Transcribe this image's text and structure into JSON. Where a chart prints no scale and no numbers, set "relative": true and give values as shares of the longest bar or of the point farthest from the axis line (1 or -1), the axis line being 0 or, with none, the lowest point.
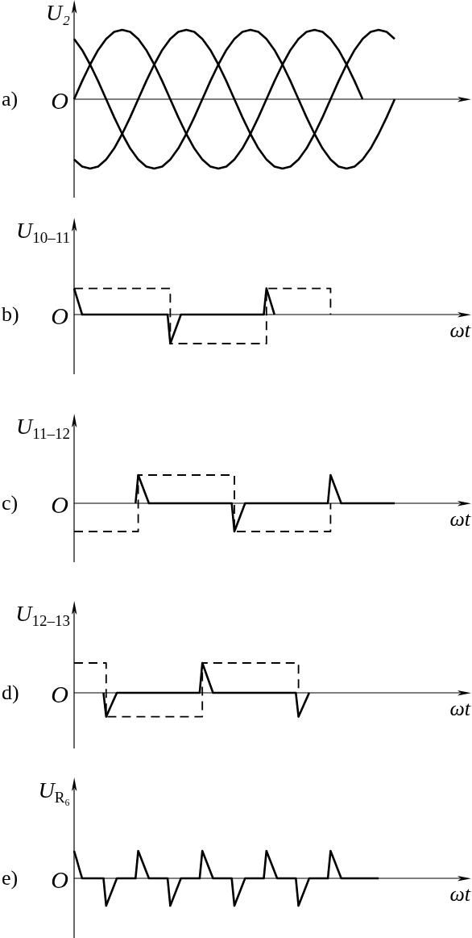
{
  "chart_data": [
    {
      "type": "line",
      "title": "a)",
      "ylabel": "U₂",
      "annotations": [
        "O"
      ],
      "relative": true,
      "tick_labels": false,
      "categories": [
        null,
        null,
        null,
        null,
        null,
        null,
        null,
        null,
        null,
        null,
        null,
        null,
        null,
        null,
        null,
        null,
        null,
        null,
        null,
        null,
        null,
        null,
        null,
        null,
        null,
        null,
        null,
        null,
        null,
        null,
        null,
        null,
        null,
        null,
        null,
        null,
        null,
        null,
        null,
        null,
        null
      ],
      "series": [
        {
          "color": "#000000",
          "values": [
            0,
            0.26,
            0.5,
            0.71,
            0.87,
            0.97,
            1,
            0.97,
            0.87,
            0.71,
            0.5,
            0.26,
            0,
            -0.26,
            -0.5,
            -0.71,
            -0.87,
            -0.97,
            -1,
            -0.97,
            -0.87,
            -0.71,
            -0.5,
            -0.26,
            0,
            0.26,
            0.5,
            0.71,
            0.87,
            0.97,
            1,
            0.97,
            0.87,
            0.71,
            0.5,
            0.26,
            0,
            null,
            null,
            null,
            null
          ]
        },
        {
          "color": "#000000",
          "values": [
            0.87,
            0.71,
            0.5,
            0.26,
            0,
            -0.26,
            -0.5,
            -0.71,
            -0.87,
            -0.97,
            -1,
            -0.97,
            -0.87,
            -0.71,
            -0.5,
            -0.26,
            0,
            0.26,
            0.5,
            0.71,
            0.87,
            0.97,
            1,
            0.97,
            0.87,
            0.71,
            0.5,
            0.26,
            0,
            -0.26,
            -0.5,
            -0.71,
            -0.87,
            -0.97,
            -1,
            -0.97,
            -0.87,
            -0.71,
            -0.5,
            -0.26,
            0
          ]
        },
        {
          "color": "#000000",
          "values": [
            -0.87,
            -0.97,
            -1,
            -0.97,
            -0.87,
            -0.71,
            -0.5,
            -0.26,
            0,
            0.26,
            0.5,
            0.71,
            0.87,
            0.97,
            1,
            0.97,
            0.87,
            0.71,
            0.5,
            0.26,
            0,
            -0.26,
            -0.5,
            -0.71,
            -0.87,
            -0.97,
            -1,
            -0.97,
            -0.87,
            -0.71,
            -0.5,
            -0.26,
            0,
            0.26,
            0.5,
            0.71,
            0.87,
            0.97,
            1,
            0.97,
            0.87
          ]
        }
      ]
    },
    {
      "type": "line",
      "title": "b)",
      "ylabel": "U$_{10–11}$",
      "xlabel": "ωt",
      "annotations": [
        "O"
      ],
      "relative": true,
      "tick_labels": false,
      "categories": [
        null,
        null,
        null,
        null,
        null,
        null,
        null,
        null,
        null,
        null,
        null,
        null,
        null,
        null,
        null,
        null,
        null,
        null,
        null,
        null,
        null,
        null,
        null,
        null,
        null,
        null,
        null,
        null,
        null,
        null,
        null,
        null,
        null,
        null,
        null,
        null,
        null,
        null,
        null,
        null,
        null,
        null,
        null,
        null,
        null,
        null,
        null,
        null,
        null,
        null,
        null,
        null,
        null,
        null,
        null,
        null,
        null,
        null,
        null,
        null,
        null,
        null,
        null,
        null,
        null,
        null,
        null,
        null,
        null,
        null,
        null,
        null,
        null,
        null,
        null,
        null,
        null,
        null,
        null,
        null,
        null,
        null,
        null,
        null,
        null,
        null,
        null,
        null,
        null,
        null,
        null,
        null,
        null,
        null,
        null,
        null,
        null,
        null,
        null,
        null,
        null,
        null,
        null,
        null,
        null,
        null,
        null,
        null,
        null,
        null,
        null,
        null,
        null,
        null,
        null,
        null,
        null,
        null,
        null,
        null,
        null
      ],
      "series": [
        {
          "color": "#000000",
          "values": [
            0.9,
            0.6,
            0.3,
            0,
            0,
            0,
            0,
            0,
            0,
            0,
            0,
            0,
            0,
            0,
            0,
            0,
            0,
            0,
            0,
            0,
            0,
            0,
            0,
            0,
            0,
            0,
            0,
            0,
            0,
            0,
            0,
            0,
            0,
            0,
            0,
            0,
            -1,
            -0.75,
            -0.5,
            -0.25,
            0,
            0,
            0,
            0,
            0,
            0,
            0,
            0,
            0,
            0,
            0,
            0,
            0,
            0,
            0,
            0,
            0,
            0,
            0,
            0,
            0,
            0,
            0,
            0,
            0,
            0,
            0,
            0,
            0,
            0,
            0,
            0,
            0.9,
            0.6,
            0.3,
            0,
            null,
            null,
            null,
            null,
            null,
            null,
            null,
            null,
            null,
            null,
            null,
            null,
            null,
            null,
            null,
            null,
            null,
            null,
            null,
            null,
            null,
            null,
            null,
            null,
            null,
            null,
            null,
            null,
            null,
            null,
            null,
            null,
            null,
            null,
            null,
            null,
            null,
            null,
            null,
            null,
            null,
            null,
            null,
            null,
            null
          ]
        },
        {
          "type": "step",
          "line_style": "dashed",
          "color": "#000000",
          "values": [
            0.9,
            0.9,
            0.9,
            0.9,
            0.9,
            0.9,
            0.9,
            0.9,
            0.9,
            0.9,
            0.9,
            0.9,
            0.9,
            0.9,
            0.9,
            0.9,
            0.9,
            0.9,
            0.9,
            0.9,
            0.9,
            0.9,
            0.9,
            0.9,
            0.9,
            0.9,
            0.9,
            0.9,
            0.9,
            0.9,
            0.9,
            0.9,
            0.9,
            0.9,
            0.9,
            0.9,
            -1,
            -1,
            -1,
            -1,
            -1,
            -1,
            -1,
            -1,
            -1,
            -1,
            -1,
            -1,
            -1,
            -1,
            -1,
            -1,
            -1,
            -1,
            -1,
            -1,
            -1,
            -1,
            -1,
            -1,
            -1,
            -1,
            -1,
            -1,
            -1,
            -1,
            -1,
            -1,
            -1,
            -1,
            -1,
            -1,
            0.9,
            0.9,
            0.9,
            0.9,
            0.9,
            0.9,
            0.9,
            0.9,
            0.9,
            0.9,
            0.9,
            0.9,
            0.9,
            0.9,
            0.9,
            0.9,
            0.9,
            0.9,
            0.9,
            0.9,
            0.9,
            0.9,
            0.9,
            0.9,
            0,
            null,
            null,
            null,
            null,
            null,
            null,
            null,
            null,
            null,
            null,
            null,
            null,
            null,
            null,
            null,
            null,
            null,
            null,
            null,
            null,
            null,
            null,
            null,
            null
          ]
        }
      ]
    },
    {
      "type": "line",
      "title": "c)",
      "ylabel": "U$_{11–12}$",
      "xlabel": "ωt",
      "annotations": [
        "O"
      ],
      "relative": true,
      "tick_labels": false,
      "categories": [
        null,
        null,
        null,
        null,
        null,
        null,
        null,
        null,
        null,
        null,
        null,
        null,
        null,
        null,
        null,
        null,
        null,
        null,
        null,
        null,
        null,
        null,
        null,
        null,
        null,
        null,
        null,
        null,
        null,
        null,
        null,
        null,
        null,
        null,
        null,
        null,
        null,
        null,
        null,
        null,
        null,
        null,
        null,
        null,
        null,
        null,
        null,
        null,
        null,
        null,
        null,
        null,
        null,
        null,
        null,
        null,
        null,
        null,
        null,
        null,
        null,
        null,
        null,
        null,
        null,
        null,
        null,
        null,
        null,
        null,
        null,
        null,
        null,
        null,
        null,
        null,
        null,
        null,
        null,
        null,
        null,
        null,
        null,
        null,
        null,
        null,
        null,
        null,
        null,
        null,
        null,
        null,
        null,
        null,
        null,
        null,
        null,
        null,
        null,
        null,
        null,
        null,
        null,
        null,
        null,
        null,
        null,
        null,
        null,
        null,
        null,
        null,
        null,
        null,
        null,
        null,
        null,
        null,
        null,
        null,
        null
      ],
      "series": [
        {
          "color": "#000000",
          "values": [
            null,
            null,
            null,
            null,
            null,
            null,
            null,
            null,
            null,
            null,
            null,
            null,
            null,
            null,
            null,
            null,
            null,
            null,
            null,
            null,
            null,
            null,
            null,
            0,
            1,
            0.75,
            0.5,
            0.25,
            0,
            0,
            0,
            0,
            0,
            0,
            0,
            0,
            0,
            0,
            0,
            0,
            0,
            0,
            0,
            0,
            0,
            0,
            0,
            0,
            0,
            0,
            0,
            0,
            0,
            0,
            0,
            0,
            0,
            0,
            0,
            0,
            -1,
            -0.75,
            -0.5,
            -0.25,
            0,
            0,
            0,
            0,
            0,
            0,
            0,
            0,
            0,
            0,
            0,
            0,
            0,
            0,
            0,
            0,
            0,
            0,
            0,
            0,
            0,
            0,
            0,
            0,
            0,
            0,
            0,
            0,
            0,
            0,
            0,
            0,
            1,
            0.75,
            0.5,
            0.25,
            0,
            0,
            0,
            0,
            0,
            0,
            0,
            0,
            0,
            0,
            0,
            0,
            0,
            0,
            0,
            0,
            0,
            0,
            0,
            0,
            0
          ]
        },
        {
          "type": "step",
          "line_style": "dashed",
          "color": "#000000",
          "values": [
            -1,
            -1,
            -1,
            -1,
            -1,
            -1,
            -1,
            -1,
            -1,
            -1,
            -1,
            -1,
            -1,
            -1,
            -1,
            -1,
            -1,
            -1,
            -1,
            -1,
            -1,
            -1,
            -1,
            -1,
            1,
            1,
            1,
            1,
            1,
            1,
            1,
            1,
            1,
            1,
            1,
            1,
            1,
            1,
            1,
            1,
            1,
            1,
            1,
            1,
            1,
            1,
            1,
            1,
            1,
            1,
            1,
            1,
            1,
            1,
            1,
            1,
            1,
            1,
            1,
            1,
            -1,
            -1,
            -1,
            -1,
            -1,
            -1,
            -1,
            -1,
            -1,
            -1,
            -1,
            -1,
            -1,
            -1,
            -1,
            -1,
            -1,
            -1,
            -1,
            -1,
            -1,
            -1,
            -1,
            -1,
            -1,
            -1,
            -1,
            -1,
            -1,
            -1,
            -1,
            -1,
            -1,
            -1,
            -1,
            -1,
            0,
            null,
            null,
            null,
            null,
            null,
            null,
            null,
            null,
            null,
            null,
            null,
            null,
            null,
            null,
            null,
            null,
            null,
            null,
            null,
            null,
            null,
            null,
            null,
            null
          ]
        }
      ]
    },
    {
      "type": "line",
      "title": "d)",
      "ylabel": "U$_{12–13}$",
      "xlabel": "ωt",
      "annotations": [
        "O"
      ],
      "relative": true,
      "tick_labels": false,
      "categories": [
        null,
        null,
        null,
        null,
        null,
        null,
        null,
        null,
        null,
        null,
        null,
        null,
        null,
        null,
        null,
        null,
        null,
        null,
        null,
        null,
        null,
        null,
        null,
        null,
        null,
        null,
        null,
        null,
        null,
        null,
        null,
        null,
        null,
        null,
        null,
        null,
        null,
        null,
        null,
        null,
        null,
        null,
        null,
        null,
        null,
        null,
        null,
        null,
        null,
        null,
        null,
        null,
        null,
        null,
        null,
        null,
        null,
        null,
        null,
        null,
        null,
        null,
        null,
        null,
        null,
        null,
        null,
        null,
        null,
        null,
        null,
        null,
        null,
        null,
        null,
        null,
        null,
        null,
        null,
        null,
        null,
        null,
        null,
        null,
        null,
        null,
        null,
        null,
        null,
        null,
        null,
        null,
        null,
        null,
        null,
        null,
        null,
        null,
        null,
        null,
        null,
        null,
        null,
        null,
        null,
        null,
        null,
        null,
        null,
        null,
        null,
        null,
        null,
        null,
        null,
        null,
        null,
        null,
        null,
        null,
        null
      ],
      "series": [
        {
          "color": "#000000",
          "values": [
            null,
            null,
            null,
            null,
            null,
            null,
            null,
            null,
            null,
            null,
            null,
            0,
            -0.8,
            -0.6,
            -0.4,
            -0.2,
            0,
            0,
            0,
            0,
            0,
            0,
            0,
            0,
            0,
            0,
            0,
            0,
            0,
            0,
            0,
            0,
            0,
            0,
            0,
            0,
            0,
            0,
            0,
            0,
            0,
            0,
            0,
            0,
            0,
            0,
            0,
            0,
            1,
            0.75,
            0.5,
            0.25,
            0,
            0,
            0,
            0,
            0,
            0,
            0,
            0,
            0,
            0,
            0,
            0,
            0,
            0,
            0,
            0,
            0,
            0,
            0,
            0,
            0,
            0,
            0,
            0,
            0,
            0,
            0,
            0,
            0,
            0,
            0,
            0,
            -0.8,
            -0.6,
            -0.4,
            -0.2,
            0,
            null,
            null,
            null,
            null,
            null,
            null,
            null,
            null,
            null,
            null,
            null,
            null,
            null,
            null,
            null,
            null,
            null,
            null,
            null,
            null,
            null,
            null,
            null,
            null,
            null,
            null,
            null,
            null,
            null,
            null,
            null,
            null
          ]
        },
        {
          "type": "step",
          "line_style": "dashed",
          "color": "#000000",
          "values": [
            1,
            1,
            1,
            1,
            1,
            1,
            1,
            1,
            1,
            1,
            1,
            1,
            -0.8,
            -0.8,
            -0.8,
            -0.8,
            -0.8,
            -0.8,
            -0.8,
            -0.8,
            -0.8,
            -0.8,
            -0.8,
            -0.8,
            -0.8,
            -0.8,
            -0.8,
            -0.8,
            -0.8,
            -0.8,
            -0.8,
            -0.8,
            -0.8,
            -0.8,
            -0.8,
            -0.8,
            -0.8,
            -0.8,
            -0.8,
            -0.8,
            -0.8,
            -0.8,
            -0.8,
            -0.8,
            -0.8,
            -0.8,
            -0.8,
            -0.8,
            1,
            1,
            1,
            1,
            1,
            1,
            1,
            1,
            1,
            1,
            1,
            1,
            1,
            1,
            1,
            1,
            1,
            1,
            1,
            1,
            1,
            1,
            1,
            1,
            1,
            1,
            1,
            1,
            1,
            1,
            1,
            1,
            1,
            1,
            1,
            1,
            0,
            null,
            null,
            null,
            null,
            null,
            null,
            null,
            null,
            null,
            null,
            null,
            null,
            null,
            null,
            null,
            null,
            null,
            null,
            null,
            null,
            null,
            null,
            null,
            null,
            null,
            null,
            null,
            null,
            null,
            null,
            null,
            null,
            null,
            null,
            null,
            null
          ]
        }
      ]
    },
    {
      "type": "line",
      "title": "e)",
      "ylabel": "U$_{R₆}$",
      "xlabel": "ωt",
      "annotations": [
        "O"
      ],
      "relative": true,
      "tick_labels": false,
      "categories": [
        null,
        null,
        null,
        null,
        null,
        null,
        null,
        null,
        null,
        null,
        null,
        null,
        null,
        null,
        null,
        null,
        null,
        null,
        null,
        null,
        null,
        null,
        null,
        null,
        null,
        null,
        null,
        null,
        null,
        null,
        null,
        null,
        null,
        null,
        null,
        null,
        null,
        null,
        null,
        null,
        null,
        null,
        null,
        null,
        null,
        null,
        null,
        null,
        null,
        null,
        null,
        null,
        null,
        null,
        null,
        null,
        null,
        null,
        null,
        null,
        null,
        null,
        null,
        null,
        null,
        null,
        null,
        null,
        null,
        null,
        null,
        null,
        null,
        null,
        null,
        null,
        null,
        null,
        null,
        null,
        null,
        null,
        null,
        null,
        null,
        null,
        null,
        null,
        null,
        null,
        null,
        null,
        null,
        null,
        null,
        null,
        null,
        null,
        null,
        null,
        null,
        null,
        null,
        null,
        null,
        null,
        null,
        null,
        null,
        null,
        null,
        null,
        null,
        null,
        null,
        null,
        null,
        null,
        null,
        null,
        null
      ],
      "series": [
        {
          "color": "#000000",
          "values": [
            1,
            0.67,
            0.33,
            0,
            0,
            0,
            0,
            0,
            0,
            0,
            0,
            0,
            -1,
            -0.75,
            -0.5,
            -0.25,
            0,
            0,
            0,
            0,
            0,
            0,
            0,
            0,
            1,
            0.75,
            0.5,
            0.25,
            0,
            0,
            0,
            0,
            0,
            0,
            0,
            0,
            -1,
            -0.75,
            -0.5,
            -0.25,
            0,
            0,
            0,
            0,
            0,
            0,
            0,
            0,
            1,
            0.75,
            0.5,
            0.25,
            0,
            0,
            0,
            0,
            0,
            0,
            0,
            0,
            -1,
            -0.75,
            -0.5,
            -0.25,
            0,
            0,
            0,
            0,
            0,
            0,
            0,
            0,
            1,
            0.75,
            0.5,
            0.25,
            0,
            0,
            0,
            0,
            0,
            0,
            0,
            0,
            -1,
            -0.75,
            -0.5,
            -0.25,
            0,
            0,
            0,
            0,
            0,
            0,
            0,
            0,
            1,
            0.75,
            0.5,
            0.25,
            0,
            0,
            0,
            0,
            0,
            0,
            0,
            0,
            0,
            0,
            0,
            0,
            0,
            0,
            0,
            null,
            null,
            null,
            null,
            null,
            null
          ]
        }
      ]
    }
  ]
}
